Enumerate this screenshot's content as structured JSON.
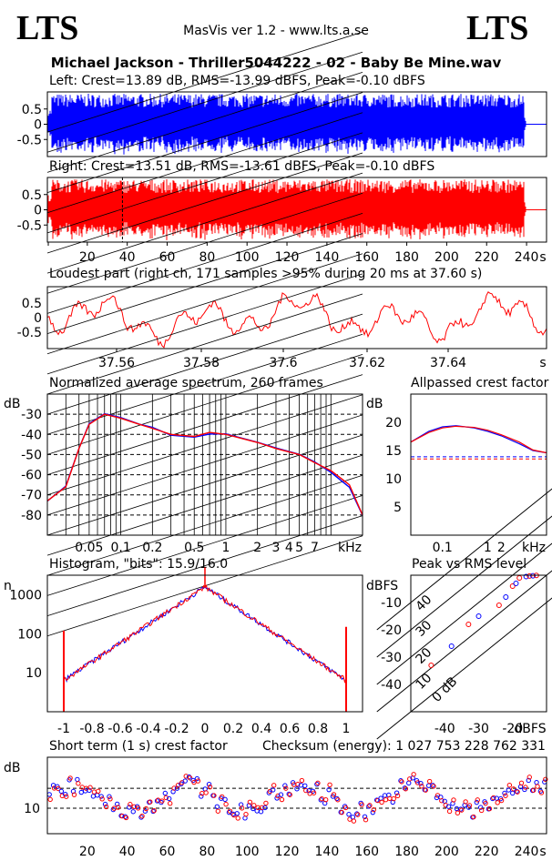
{
  "header": {
    "logo_left": "LTS",
    "logo_right": "LTS",
    "app": "MasVis ver 1.2 - www.lts.a.se",
    "file": "Michael Jackson - Thriller5044222 - 02 - Baby Be Mine.wav"
  },
  "colors": {
    "left": "#0000ff",
    "right": "#ff0000"
  },
  "chart_data": [
    {
      "type": "line",
      "id": "left-waveform",
      "title": "Left: Crest=13.89 dB, RMS=-13.99 dBFS, Peak=-0.10 dBFS",
      "ylim": [
        -1,
        1
      ],
      "yticks": [
        "0.5",
        "0",
        "-0.5"
      ]
    },
    {
      "type": "line",
      "id": "right-waveform",
      "title": "Right: Crest=13.51 dB, RMS=-13.61 dBFS, Peak=-0.10 dBFS",
      "ylim": [
        -1,
        1
      ],
      "yticks": [
        "0.5",
        "0",
        "-0.5"
      ],
      "xticks": [
        "20",
        "40",
        "60",
        "80",
        "100",
        "120",
        "140",
        "160",
        "180",
        "200",
        "220",
        "240"
      ],
      "xunit": "s",
      "marker_x": 37.6
    },
    {
      "type": "line",
      "id": "loudest-part",
      "title": "Loudest part (right ch, 171 samples >95% during 20 ms at 37.60 s)",
      "yticks": [
        "0.5",
        "0",
        "-0.5"
      ],
      "xticks": [
        "37.56",
        "37.58",
        "37.6",
        "37.62",
        "37.64"
      ],
      "xunit": "s"
    },
    {
      "type": "line",
      "id": "spectrum",
      "title": "Normalized average spectrum, 260 frames",
      "ylabel": "dB",
      "yticks": [
        "-30",
        "-40",
        "-50",
        "-60",
        "-70",
        "-80"
      ],
      "xticks": [
        "0.05",
        "0.1",
        "0.2",
        "0.5",
        "1",
        "2",
        "3",
        "4",
        "5",
        "7"
      ],
      "xunit": "kHz",
      "x": [
        0.02,
        0.03,
        0.04,
        0.05,
        0.07,
        0.1,
        0.15,
        0.2,
        0.3,
        0.5,
        0.7,
        1,
        2,
        3,
        5,
        7,
        10,
        15,
        20
      ],
      "series": [
        {
          "values": [
            -73,
            -66,
            -47,
            -35,
            -30,
            -32,
            -35,
            -37,
            -40,
            -41,
            -40,
            -40,
            -44,
            -47,
            -50,
            -54,
            -59,
            -66,
            -80
          ]
        },
        {
          "values": [
            -73,
            -66,
            -47,
            -35,
            -30,
            -32,
            -35,
            -37,
            -40,
            -41,
            -39,
            -40,
            -44,
            -47,
            -50,
            -54,
            -58,
            -65,
            -80
          ]
        }
      ]
    },
    {
      "type": "line",
      "id": "allpassed-crest",
      "title": "Allpassed crest factor",
      "ylabel": "dB",
      "yticks": [
        "20",
        "15",
        "10",
        "5"
      ],
      "xticks": [
        "0.1",
        "1",
        "2"
      ],
      "xunit": "kHz",
      "x": [
        0.02,
        0.05,
        0.1,
        0.2,
        0.5,
        1,
        2,
        5,
        10,
        20
      ],
      "series": [
        {
          "values": [
            16.5,
            18.4,
            19.2,
            19.4,
            19.0,
            18.4,
            17.6,
            16.2,
            15.0,
            14.6
          ]
        },
        {
          "values": [
            16.5,
            18.2,
            19.0,
            19.3,
            19.1,
            18.6,
            17.8,
            16.5,
            15.1,
            14.6
          ]
        }
      ],
      "ref_lines": [
        13.9,
        13.5
      ]
    },
    {
      "type": "line",
      "id": "histogram",
      "title": "Histogram, \"bits\": 15.9/16.0",
      "ylabel": "n",
      "yscale": "log",
      "yticks": [
        "1000",
        "100",
        "10"
      ],
      "xticks": [
        "-1",
        "-0.8",
        "-0.6",
        "-0.4",
        "-0.2",
        "0",
        "0.2",
        "0.4",
        "0.6",
        "0.8",
        "1"
      ],
      "peak": 1600
    },
    {
      "type": "scatter",
      "id": "peak-vs-rms",
      "title": "Peak vs RMS level",
      "ylabel": "dBFS",
      "xlabel": "dBFS",
      "yticks": [
        "-10",
        "-20",
        "-30",
        "-40"
      ],
      "xticks": [
        "-40",
        "-30",
        "-20"
      ],
      "diagonal_labels": [
        "40",
        "30",
        "20",
        "10",
        "0 dB"
      ],
      "points": [
        [
          -44,
          -33
        ],
        [
          -38,
          -26
        ],
        [
          -33,
          -18
        ],
        [
          -30,
          -15
        ],
        [
          -24,
          -11
        ],
        [
          -22,
          -8
        ],
        [
          -20,
          -4
        ],
        [
          -19,
          -3
        ],
        [
          -18,
          -1
        ],
        [
          -16,
          -0.5
        ],
        [
          -15,
          -0.3
        ],
        [
          -14,
          -0.2
        ],
        [
          -13,
          -0.1
        ]
      ]
    },
    {
      "type": "scatter",
      "id": "short-term-crest",
      "title": "Short term (1 s) crest factor",
      "checksum": "Checksum (energy):  1 027 753 228 762 331",
      "ylabel": "dB",
      "yticks": [
        "10"
      ],
      "xticks": [
        "20",
        "40",
        "60",
        "80",
        "100",
        "120",
        "140",
        "160",
        "180",
        "200",
        "220",
        "240"
      ],
      "xunit": "s",
      "ref_lines": [
        13.9,
        10
      ]
    }
  ]
}
